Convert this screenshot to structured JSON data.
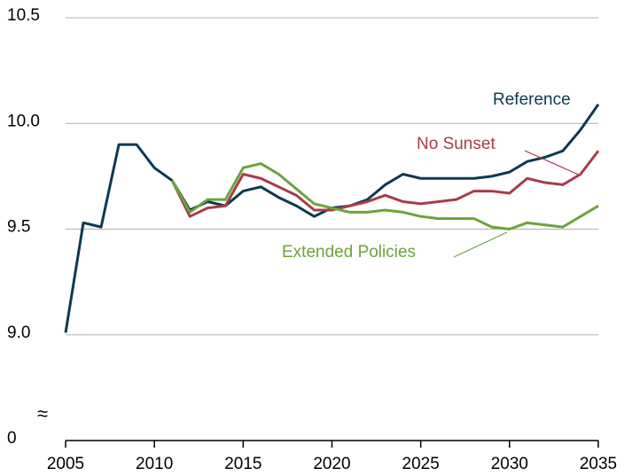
{
  "chart_data": {
    "type": "line",
    "x": [
      2005,
      2006,
      2007,
      2008,
      2009,
      2010,
      2011,
      2012,
      2013,
      2014,
      2015,
      2016,
      2017,
      2018,
      2019,
      2020,
      2021,
      2022,
      2023,
      2024,
      2025,
      2026,
      2027,
      2028,
      2029,
      2030,
      2031,
      2032,
      2033,
      2034,
      2035
    ],
    "series": [
      {
        "name": "Reference",
        "color": "#0b3a53",
        "values": [
          9.01,
          9.53,
          9.51,
          9.9,
          9.9,
          9.79,
          9.73,
          9.59,
          9.63,
          9.61,
          9.68,
          9.7,
          9.65,
          9.61,
          9.56,
          9.6,
          9.61,
          9.64,
          9.71,
          9.76,
          9.74,
          9.74,
          9.74,
          9.74,
          9.75,
          9.77,
          9.82,
          9.84,
          9.87,
          9.97,
          10.09
        ]
      },
      {
        "name": "No Sunset",
        "color": "#a83c4a",
        "values": [
          null,
          null,
          null,
          null,
          null,
          null,
          9.73,
          9.56,
          9.6,
          9.61,
          9.76,
          9.74,
          9.7,
          9.66,
          9.59,
          9.59,
          9.61,
          9.63,
          9.66,
          9.63,
          9.62,
          9.63,
          9.64,
          9.68,
          9.68,
          9.67,
          9.74,
          9.72,
          9.71,
          9.76,
          9.87
        ]
      },
      {
        "name": "Extended Policies",
        "color": "#6ba43a",
        "values": [
          null,
          null,
          null,
          null,
          null,
          null,
          9.73,
          9.58,
          9.64,
          9.64,
          9.79,
          9.81,
          9.76,
          9.69,
          9.62,
          9.6,
          9.58,
          9.58,
          9.59,
          9.58,
          9.56,
          9.55,
          9.55,
          9.55,
          9.51,
          9.5,
          9.53,
          9.52,
          9.51,
          9.56,
          9.61
        ]
      }
    ],
    "xlim": [
      2005,
      2035
    ],
    "xticks": [
      2005,
      2010,
      2015,
      2020,
      2025,
      2030,
      2035
    ],
    "ylim": [
      0,
      10.5
    ],
    "y_break": [
      0,
      8.5
    ],
    "yticks": [
      0,
      {
        "value": 9,
        "label": "9.0"
      },
      9.5,
      {
        "value": 10,
        "label": "10.0"
      },
      10.5
    ],
    "grid": true
  }
}
